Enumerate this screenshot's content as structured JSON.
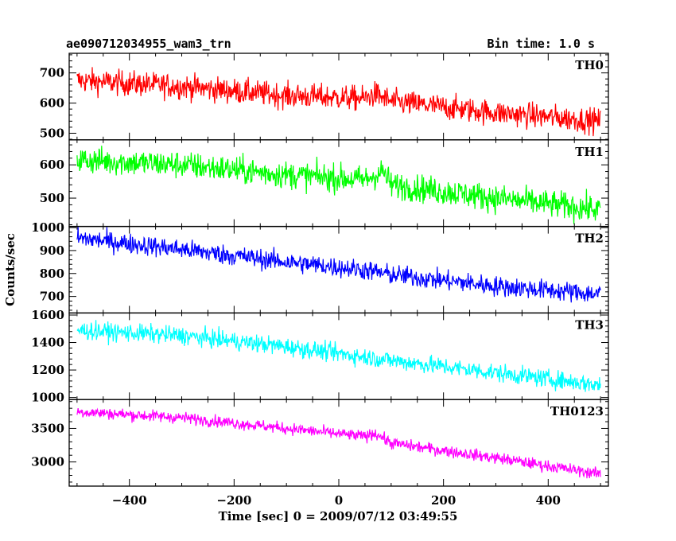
{
  "chart_data": {
    "type": "line",
    "title": "ae090712034955_wam3_trn",
    "bin_time_label": "Bin time: 1.0 s",
    "xlabel": "Time [sec] 0 = 2009/07/12 03:49:55",
    "ylabel": "Counts/sec",
    "xlim": [
      -515,
      515
    ],
    "x_ticks": [
      -400,
      -200,
      0,
      200,
      400
    ],
    "x_tick_labels": [
      "−400",
      "−200",
      "0",
      "200",
      "400"
    ],
    "x_range": [
      -500,
      500
    ],
    "grid": false,
    "panels": [
      {
        "name": "TH0",
        "color": "#ff0000",
        "ylim": [
          478,
          765
        ],
        "y_ticks": [
          500,
          600,
          700
        ],
        "y_tick_labels": [
          "500",
          "600",
          "700"
        ],
        "trend": [
          [
            -500,
            675
          ],
          [
            -300,
            655
          ],
          [
            -100,
            625
          ],
          [
            50,
            615
          ],
          [
            70,
            630
          ],
          [
            100,
            605
          ],
          [
            300,
            568
          ],
          [
            500,
            540
          ]
        ],
        "noise": 38
      },
      {
        "name": "TH1",
        "color": "#00ff00",
        "ylim": [
          415,
          675
        ],
        "y_ticks": [
          500,
          600
        ],
        "y_tick_labels": [
          "500",
          "600"
        ],
        "trend": [
          [
            -500,
            615
          ],
          [
            -300,
            600
          ],
          [
            -100,
            570
          ],
          [
            50,
            555
          ],
          [
            85,
            580
          ],
          [
            100,
            540
          ],
          [
            300,
            500
          ],
          [
            500,
            465
          ]
        ],
        "noise": 38
      },
      {
        "name": "TH2",
        "color": "#0000ff",
        "ylim": [
          628,
          1005
        ],
        "y_ticks": [
          700,
          800,
          900,
          1000
        ],
        "y_tick_labels": [
          "700",
          "800",
          "900",
          "1000"
        ],
        "trend": [
          [
            -500,
            955
          ],
          [
            -300,
            905
          ],
          [
            -100,
            850
          ],
          [
            50,
            815
          ],
          [
            100,
            795
          ],
          [
            300,
            745
          ],
          [
            500,
            710
          ]
        ],
        "noise": 40
      },
      {
        "name": "TH3",
        "color": "#00ffff",
        "ylim": [
          985,
          1615
        ],
        "y_ticks": [
          1000,
          1200,
          1400,
          1600
        ],
        "y_tick_labels": [
          "1000",
          "1200",
          "1400",
          "1600"
        ],
        "trend": [
          [
            -500,
            1490
          ],
          [
            -300,
            1450
          ],
          [
            -100,
            1370
          ],
          [
            100,
            1270
          ],
          [
            300,
            1180
          ],
          [
            500,
            1090
          ]
        ],
        "noise": 60
      },
      {
        "name": "TH0123",
        "color": "#ff00ff",
        "ylim": [
          2640,
          3930
        ],
        "y_ticks": [
          3000,
          3500
        ],
        "y_tick_labels": [
          "3000",
          "3500"
        ],
        "trend": [
          [
            -500,
            3750
          ],
          [
            -300,
            3660
          ],
          [
            -100,
            3500
          ],
          [
            50,
            3380
          ],
          [
            70,
            3430
          ],
          [
            100,
            3280
          ],
          [
            300,
            3060
          ],
          [
            500,
            2820
          ]
        ],
        "noise": 80
      }
    ]
  }
}
